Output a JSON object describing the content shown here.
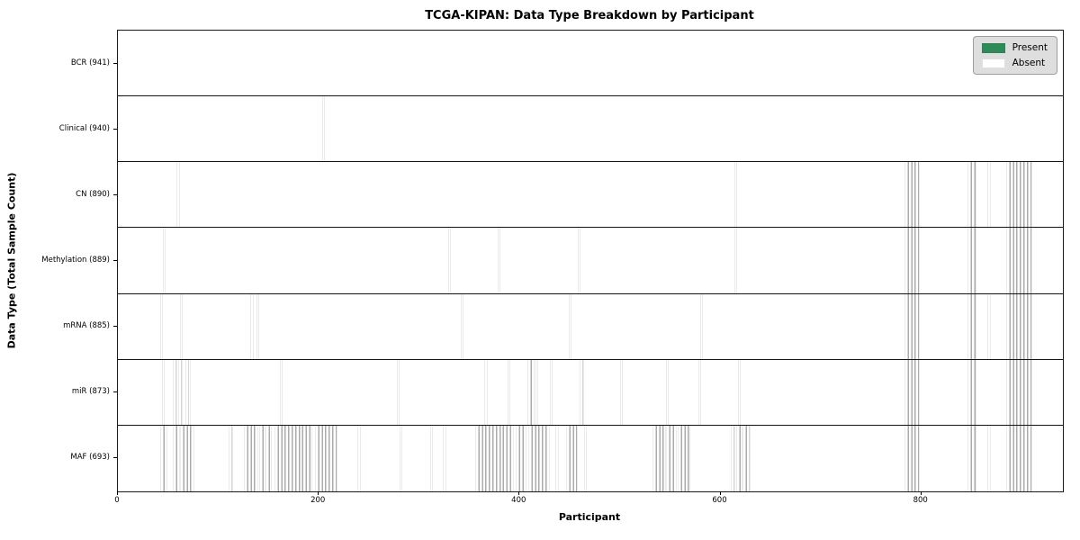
{
  "title": "TCGA-KIPAN: Data Type Breakdown by Participant",
  "xlabel": "Participant",
  "ylabel": "Data Type (Total Sample Count)",
  "legend": {
    "present_label": "Present",
    "absent_label": "Absent"
  },
  "colors": {
    "present_fill": "#2e8b57",
    "present_edge": "#1e4f35",
    "absent_fill": "#ffffff",
    "absent_edge": "#ababab",
    "legend_bg": "#dbdbdb"
  },
  "chart_data": {
    "type": "heatmap",
    "title": "TCGA-KIPAN: Data Type Breakdown by Participant",
    "xlabel": "Participant",
    "ylabel": "Data Type (Total Sample Count)",
    "legend": [
      "Present",
      "Absent"
    ],
    "legend_position": "upper right",
    "x_range": [
      0,
      941
    ],
    "x_ticks": [
      0,
      200,
      400,
      600,
      800
    ],
    "grid": "row-separators",
    "rows": [
      {
        "label": "BCR (941)",
        "data_type": "BCR",
        "sample_count": 941,
        "absent_ranges": []
      },
      {
        "label": "Clinical (940)",
        "data_type": "Clinical",
        "sample_count": 940,
        "absent_ranges": [
          [
            204,
            205
          ]
        ]
      },
      {
        "label": "CN (890)",
        "data_type": "CN",
        "sample_count": 890,
        "absent_ranges": [
          [
            59,
            61
          ],
          [
            615,
            616
          ],
          [
            784,
            798
          ],
          [
            847,
            854
          ],
          [
            867,
            868
          ],
          [
            885,
            910
          ]
        ]
      },
      {
        "label": "Methylation (889)",
        "data_type": "Methylation",
        "sample_count": 889,
        "absent_ranges": [
          [
            46,
            47
          ],
          [
            330,
            331
          ],
          [
            379,
            380
          ],
          [
            459,
            460
          ],
          [
            615,
            616
          ],
          [
            784,
            798
          ],
          [
            847,
            854
          ],
          [
            885,
            910
          ]
        ]
      },
      {
        "label": "mRNA (885)",
        "data_type": "mRNA",
        "sample_count": 885,
        "absent_ranges": [
          [
            43,
            44
          ],
          [
            63,
            64
          ],
          [
            133,
            134
          ],
          [
            139,
            140
          ],
          [
            342,
            343
          ],
          [
            450,
            451
          ],
          [
            581,
            582
          ],
          [
            784,
            798
          ],
          [
            847,
            854
          ],
          [
            867,
            868
          ],
          [
            885,
            910
          ]
        ]
      },
      {
        "label": "miR (873)",
        "data_type": "miR",
        "sample_count": 873,
        "absent_ranges": [
          [
            45,
            46
          ],
          [
            56,
            58
          ],
          [
            61,
            64
          ],
          [
            68,
            70
          ],
          [
            71,
            72
          ],
          [
            162,
            163
          ],
          [
            279,
            280
          ],
          [
            366,
            367
          ],
          [
            389,
            390
          ],
          [
            409,
            414
          ],
          [
            417,
            418
          ],
          [
            431,
            432
          ],
          [
            461,
            463
          ],
          [
            501,
            502
          ],
          [
            547,
            548
          ],
          [
            579,
            580
          ],
          [
            618,
            619
          ],
          [
            784,
            798
          ],
          [
            847,
            854
          ],
          [
            885,
            910
          ]
        ]
      },
      {
        "label": "MAF (693)",
        "data_type": "MAF",
        "sample_count": 693,
        "absent_ranges": [
          [
            43,
            48
          ],
          [
            56,
            61
          ],
          [
            63,
            75
          ],
          [
            111,
            114
          ],
          [
            126,
            139
          ],
          [
            142,
            146
          ],
          [
            148,
            152
          ],
          [
            157,
            193
          ],
          [
            197,
            218
          ],
          [
            239,
            241
          ],
          [
            281,
            282
          ],
          [
            312,
            313
          ],
          [
            324,
            326
          ],
          [
            357,
            393
          ],
          [
            397,
            406
          ],
          [
            410,
            429
          ],
          [
            436,
            438
          ],
          [
            447,
            457
          ],
          [
            465,
            466
          ],
          [
            533,
            545
          ],
          [
            547,
            556
          ],
          [
            558,
            569
          ],
          [
            611,
            614
          ],
          [
            617,
            621
          ],
          [
            623,
            629
          ],
          [
            784,
            798
          ],
          [
            847,
            854
          ],
          [
            867,
            868
          ],
          [
            885,
            910
          ]
        ]
      }
    ]
  }
}
